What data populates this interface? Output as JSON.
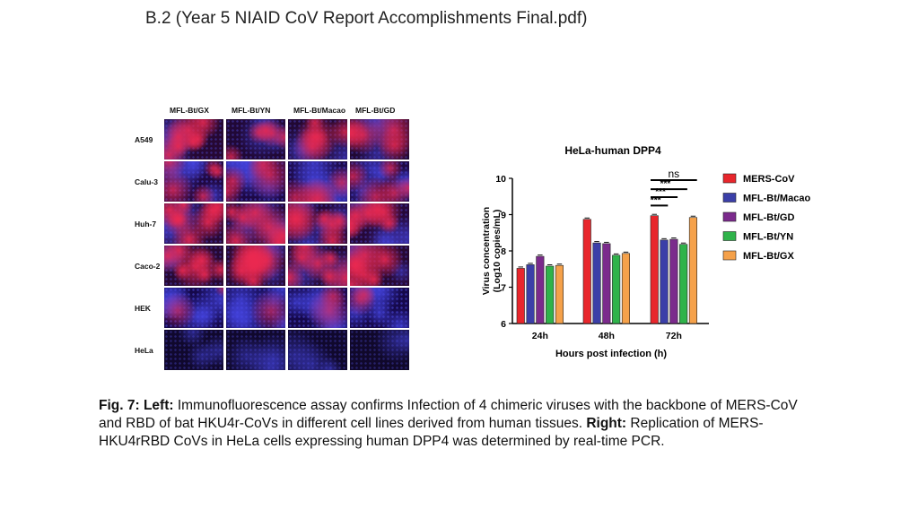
{
  "document": {
    "title": "B.2 (Year 5 NIAID CoV Report Accomplishments Final.pdf)"
  },
  "if_panel": {
    "columns": [
      "MFL-Bt/GX",
      "MFL-Bt/YN",
      "MFL-Bt/Macao",
      "MFL-Bt/GD"
    ],
    "rows": [
      "A549",
      "Calu-3",
      "Huh-7",
      "Caco-2",
      "HEK",
      "HeLa"
    ],
    "red_intensity": [
      [
        0.75,
        0.55,
        0.6,
        0.6
      ],
      [
        0.55,
        0.45,
        0.4,
        0.5
      ],
      [
        0.85,
        0.75,
        0.7,
        0.75
      ],
      [
        0.8,
        0.8,
        0.75,
        0.8
      ],
      [
        0.2,
        0.15,
        0.2,
        0.2
      ],
      [
        0.02,
        0.02,
        0.02,
        0.02
      ]
    ],
    "blue_intensity": [
      [
        0.35,
        0.4,
        0.35,
        0.35
      ],
      [
        0.6,
        0.65,
        0.65,
        0.6
      ],
      [
        0.4,
        0.45,
        0.45,
        0.45
      ],
      [
        0.35,
        0.35,
        0.35,
        0.35
      ],
      [
        0.75,
        0.75,
        0.75,
        0.75
      ],
      [
        0.25,
        0.25,
        0.25,
        0.2
      ]
    ]
  },
  "chart_data": {
    "type": "bar",
    "title": "HeLa-human DPP4",
    "xlabel": "Hours post infection (h)",
    "ylabel_line1": "Virus concentration",
    "ylabel_line2": "(Log10 copies/mL)",
    "ylim": [
      6,
      10
    ],
    "yticks": [
      "6",
      "7",
      "8",
      "9",
      "10"
    ],
    "categories": [
      "24h",
      "48h",
      "72h"
    ],
    "series": [
      {
        "name": "MERS-CoV",
        "color": "#e8262c",
        "values": [
          7.52,
          8.87,
          8.97
        ]
      },
      {
        "name": "MFL-Bt/Macao",
        "color": "#3b3fa8",
        "values": [
          7.62,
          8.22,
          8.3
        ]
      },
      {
        "name": "MFL-Bt/GD",
        "color": "#7b2a8c",
        "values": [
          7.85,
          8.2,
          8.32
        ]
      },
      {
        "name": "MFL-Bt/YN",
        "color": "#2fb34a",
        "values": [
          7.58,
          7.88,
          8.18
        ]
      },
      {
        "name": "MFL-Bt/GX",
        "color": "#f5a14a",
        "values": [
          7.6,
          7.93,
          8.92
        ]
      }
    ],
    "significance": [
      {
        "label": "***",
        "from_series": 0,
        "to_series": 1,
        "category": 2
      },
      {
        "label": "***",
        "from_series": 0,
        "to_series": 2,
        "category": 2
      },
      {
        "label": "***",
        "from_series": 0,
        "to_series": 3,
        "category": 2
      },
      {
        "label": "ns",
        "from_series": 0,
        "to_series": 4,
        "category": 2
      }
    ],
    "legend_position": "right",
    "grid": false
  },
  "caption": {
    "fig_label": "Fig. 7:",
    "left_label": "Left:",
    "left_text": " Immunofluorescence assay confirms Infection of 4 chimeric viruses with the backbone of MERS-CoV and RBD of bat HKU4r-CoVs in different cell lines derived from human tissues. ",
    "right_label": "Right:",
    "right_text": " Replication of MERS-HKU4rRBD CoVs in HeLa cells expressing human DPP4 was determined by real-time PCR."
  }
}
